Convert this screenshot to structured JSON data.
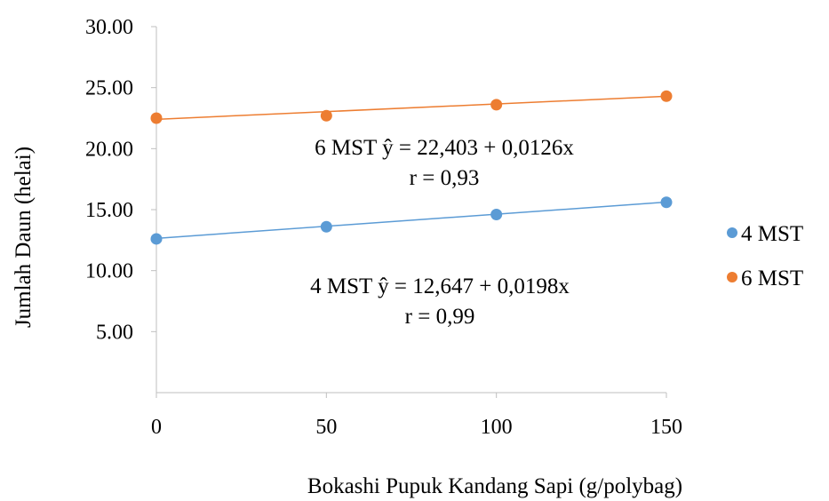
{
  "chart_data": {
    "type": "scatter",
    "xlabel": "Bokashi Pupuk Kandang Sapi (g/polybag)",
    "ylabel": "Jumlah Daun (helai)",
    "xlim": [
      0,
      150
    ],
    "ylim": [
      0,
      30
    ],
    "x": [
      0,
      50,
      100,
      150
    ],
    "x_ticks": [
      "0",
      "50",
      "100",
      "150"
    ],
    "y_ticks": [
      "5.00",
      "10.00",
      "15.00",
      "20.00",
      "25.00",
      "30.00"
    ],
    "grid": false,
    "legend_position": "right",
    "series": [
      {
        "name": "4 MST",
        "color": "#5B9BD5",
        "values": [
          12.6,
          13.6,
          14.6,
          15.6
        ],
        "trendline": {
          "intercept": 12.647,
          "slope": 0.0198
        },
        "equation": "4 MST ŷ = 12,647 + 0,0198x",
        "r_label": "r = 0,99"
      },
      {
        "name": "6 MST",
        "color": "#ED7D31",
        "values": [
          22.5,
          22.7,
          23.6,
          24.3
        ],
        "trendline": {
          "intercept": 22.403,
          "slope": 0.0126
        },
        "equation": "6 MST ŷ = 22,403 + 0,0126x",
        "r_label": "r = 0,93"
      }
    ]
  }
}
